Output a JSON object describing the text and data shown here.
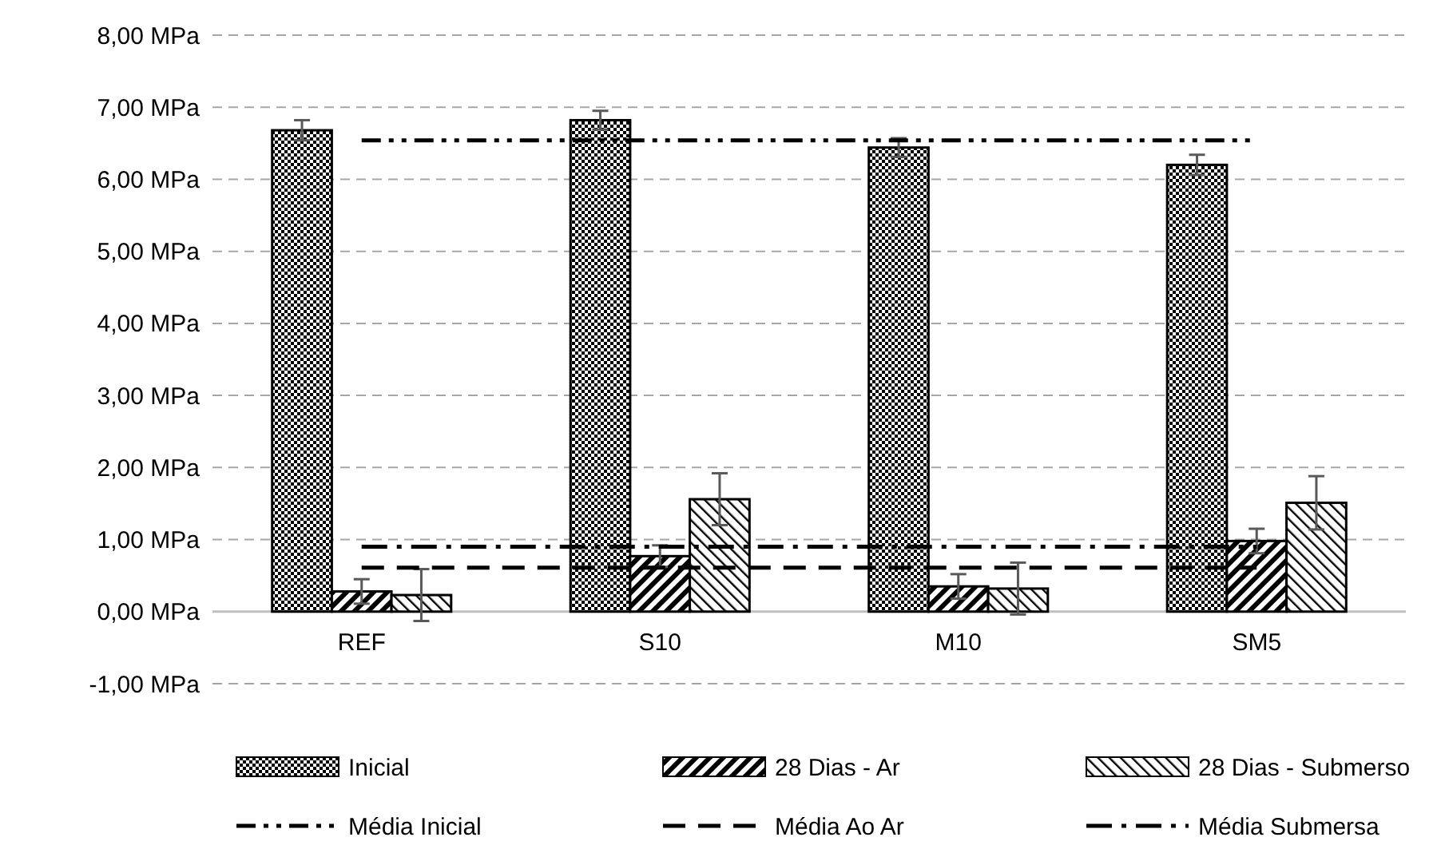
{
  "chart_data": {
    "type": "bar",
    "categories": [
      "REF",
      "S10",
      "M10",
      "SM5"
    ],
    "series": [
      {
        "name": "Inicial",
        "color": "#000000",
        "values": [
          6.68,
          6.82,
          6.44,
          6.2
        ],
        "errors": [
          0.14,
          0.13,
          0.13,
          0.14
        ]
      },
      {
        "name": "28 Dias - Ar",
        "color": "#000000",
        "values": [
          0.28,
          0.77,
          0.35,
          0.98
        ],
        "errors": [
          0.17,
          0.15,
          0.17,
          0.17
        ]
      },
      {
        "name": "28 Dias - Submerso",
        "color": "#000000",
        "values": [
          0.23,
          1.56,
          0.32,
          1.51
        ],
        "errors": [
          0.36,
          0.36,
          0.36,
          0.37
        ]
      }
    ],
    "ylim": [
      -1,
      8
    ],
    "yticks": [
      {
        "value": -1,
        "label": "-1,00 MPa"
      },
      {
        "value": 0,
        "label": "0,00 MPa"
      },
      {
        "value": 1,
        "label": "1,00 MPa"
      },
      {
        "value": 2,
        "label": "2,00 MPa"
      },
      {
        "value": 3,
        "label": "3,00 MPa"
      },
      {
        "value": 4,
        "label": "4,00 MPa"
      },
      {
        "value": 5,
        "label": "5,00 MPa"
      },
      {
        "value": 6,
        "label": "6,00 MPa"
      },
      {
        "value": 7,
        "label": "7,00 MPa"
      },
      {
        "value": 8,
        "label": "8,00 MPa"
      }
    ],
    "grid": "y",
    "legend": "bottom",
    "ref_lines": [
      {
        "axis": "y",
        "value": 6.54,
        "label": "Média Inicial",
        "color": "#000000",
        "line_style": "dashdotdot"
      },
      {
        "axis": "y",
        "value": 0.61,
        "label": "Média Ao Ar",
        "color": "#000000",
        "line_style": "dashed"
      },
      {
        "axis": "y",
        "value": 0.9,
        "label": "Média Submersa",
        "color": "#000000",
        "line_style": "dashdot"
      }
    ]
  }
}
